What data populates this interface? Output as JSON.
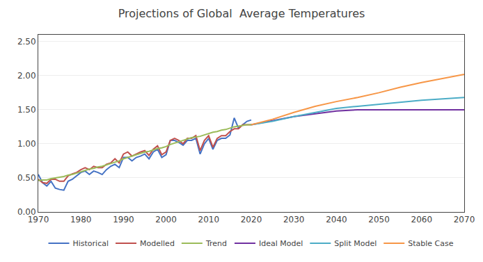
{
  "chart_data": {
    "type": "line",
    "title": "Projections of Global  Average Temperatures",
    "x": [
      1970,
      1971,
      1972,
      1973,
      1974,
      1975,
      1976,
      1977,
      1978,
      1979,
      1980,
      1981,
      1982,
      1983,
      1984,
      1985,
      1986,
      1987,
      1988,
      1989,
      1990,
      1991,
      1992,
      1993,
      1994,
      1995,
      1996,
      1997,
      1998,
      1999,
      2000,
      2001,
      2002,
      2003,
      2004,
      2005,
      2006,
      2007,
      2008,
      2009,
      2010,
      2011,
      2012,
      2013,
      2014,
      2015,
      2016,
      2017,
      2018,
      2019,
      2020,
      2025,
      2030,
      2035,
      2040,
      2045,
      2050,
      2055,
      2060,
      2065,
      2070
    ],
    "series": [
      {
        "name": "Historical",
        "color": "#4472C4",
        "values": [
          0.55,
          0.43,
          0.38,
          0.45,
          0.35,
          0.33,
          0.32,
          0.45,
          0.48,
          0.53,
          0.58,
          0.6,
          0.55,
          0.6,
          0.58,
          0.55,
          0.62,
          0.67,
          0.7,
          0.65,
          0.8,
          0.8,
          0.75,
          0.8,
          0.82,
          0.85,
          0.78,
          0.88,
          0.92,
          0.8,
          0.84,
          1.05,
          1.05,
          1.02,
          0.98,
          1.05,
          1.05,
          1.08,
          0.85,
          1.0,
          1.08,
          0.92,
          1.05,
          1.08,
          1.08,
          1.13,
          1.38,
          1.23,
          1.28,
          1.33,
          1.35,
          null,
          null,
          null,
          null,
          null,
          null,
          null,
          null,
          null,
          null
        ]
      },
      {
        "name": "Modelled",
        "color": "#C0504D",
        "values": [
          0.48,
          0.43,
          0.42,
          0.48,
          0.48,
          0.45,
          0.45,
          0.53,
          0.56,
          0.58,
          0.62,
          0.65,
          0.62,
          0.67,
          0.65,
          0.65,
          0.7,
          0.72,
          0.78,
          0.72,
          0.85,
          0.88,
          0.82,
          0.85,
          0.88,
          0.9,
          0.83,
          0.92,
          0.97,
          0.84,
          0.88,
          1.05,
          1.08,
          1.05,
          1.0,
          1.08,
          1.08,
          1.12,
          0.9,
          1.05,
          1.12,
          0.95,
          1.08,
          1.12,
          1.12,
          1.18,
          1.22,
          1.22,
          1.28,
          1.28,
          1.28,
          null,
          null,
          null,
          null,
          null,
          null,
          null,
          null,
          null,
          null
        ]
      },
      {
        "name": "Trend",
        "color": "#9BBB59",
        "values": [
          0.46,
          0.47,
          0.47,
          0.49,
          0.5,
          0.51,
          0.52,
          0.54,
          0.55,
          0.57,
          0.59,
          0.61,
          0.63,
          0.64,
          0.66,
          0.67,
          0.69,
          0.71,
          0.73,
          0.75,
          0.78,
          0.8,
          0.82,
          0.84,
          0.86,
          0.88,
          0.89,
          0.91,
          0.93,
          0.94,
          0.96,
          0.99,
          1.01,
          1.03,
          1.05,
          1.07,
          1.09,
          1.1,
          1.11,
          1.13,
          1.15,
          1.17,
          1.18,
          1.2,
          1.21,
          1.23,
          1.25,
          1.26,
          1.27,
          1.28,
          1.28,
          null,
          null,
          null,
          null,
          null,
          null,
          null,
          null,
          null,
          null
        ]
      },
      {
        "name": "Ideal Model",
        "color": "#7030A0",
        "values": [
          null,
          null,
          null,
          null,
          null,
          null,
          null,
          null,
          null,
          null,
          null,
          null,
          null,
          null,
          null,
          null,
          null,
          null,
          null,
          null,
          null,
          null,
          null,
          null,
          null,
          null,
          null,
          null,
          null,
          null,
          null,
          null,
          null,
          null,
          null,
          null,
          null,
          null,
          null,
          null,
          null,
          null,
          null,
          null,
          null,
          null,
          null,
          null,
          null,
          null,
          1.28,
          1.34,
          1.4,
          1.44,
          1.48,
          1.5,
          1.5,
          1.5,
          1.5,
          1.5,
          1.5
        ]
      },
      {
        "name": "Split Model",
        "color": "#4BACC6",
        "values": [
          null,
          null,
          null,
          null,
          null,
          null,
          null,
          null,
          null,
          null,
          null,
          null,
          null,
          null,
          null,
          null,
          null,
          null,
          null,
          null,
          null,
          null,
          null,
          null,
          null,
          null,
          null,
          null,
          null,
          null,
          null,
          null,
          null,
          null,
          null,
          null,
          null,
          null,
          null,
          null,
          null,
          null,
          null,
          null,
          null,
          null,
          null,
          null,
          null,
          null,
          1.28,
          1.33,
          1.4,
          1.46,
          1.52,
          1.55,
          1.58,
          1.61,
          1.64,
          1.66,
          1.68
        ]
      },
      {
        "name": "Stable Case",
        "color": "#F79646",
        "values": [
          null,
          null,
          null,
          null,
          null,
          null,
          null,
          null,
          null,
          null,
          null,
          null,
          null,
          null,
          null,
          null,
          null,
          null,
          null,
          null,
          null,
          null,
          null,
          null,
          null,
          null,
          null,
          null,
          null,
          null,
          null,
          null,
          null,
          null,
          null,
          null,
          null,
          null,
          null,
          null,
          null,
          null,
          null,
          null,
          null,
          null,
          null,
          null,
          null,
          null,
          1.28,
          1.36,
          1.46,
          1.55,
          1.62,
          1.68,
          1.75,
          1.83,
          1.9,
          1.96,
          2.02
        ]
      }
    ],
    "xlim": [
      1970,
      2070
    ],
    "xticks": [
      1970,
      1980,
      1990,
      2000,
      2010,
      2020,
      2030,
      2040,
      2050,
      2060,
      2070
    ],
    "ylim": [
      0.0,
      2.6
    ],
    "yticks": [
      {
        "value": 0.0,
        "label": "0.00"
      },
      {
        "value": 0.5,
        "label": "0.50"
      },
      {
        "value": 1.0,
        "label": "1.00"
      },
      {
        "value": 1.5,
        "label": "1.50"
      },
      {
        "value": 2.0,
        "label": "2.00"
      },
      {
        "value": 2.5,
        "label": "2.50"
      }
    ],
    "grid": true,
    "legend": "bottom"
  }
}
